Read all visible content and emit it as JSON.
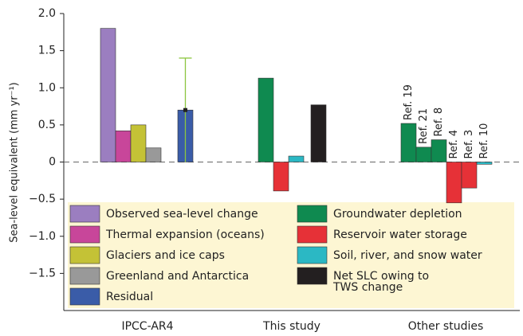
{
  "chart_data": {
    "type": "grouped-bar",
    "y_label": "Sea-level equivalent (mm yr⁻¹)",
    "ylim": [
      -2,
      2
    ],
    "yticks": [
      {
        "value": 2,
        "label": "2.0"
      },
      {
        "value": 1.5,
        "label": "1.5"
      },
      {
        "value": 1,
        "label": "1.0"
      },
      {
        "value": 0.5,
        "label": "0.5"
      },
      0,
      {
        "value": -0.5,
        "label": "−0.5"
      },
      {
        "value": -1,
        "label": "−1.0"
      },
      {
        "value": -1.5,
        "label": "−1.5"
      }
    ],
    "zero_line": true,
    "groups": [
      {
        "label": "IPCC-AR4",
        "bars": [
          {
            "value": 1.8,
            "color": "#9b7ec0"
          },
          {
            "value": 0.42,
            "color": "#c8469a"
          },
          {
            "value": 0.5,
            "color": "#c4c236"
          },
          {
            "value": 0.19,
            "color": "#999999"
          },
          {
            "value": 0.7,
            "color": "#3a5ca8",
            "error": 0.7,
            "error_color": "#8cc63f"
          }
        ]
      },
      {
        "label": "This study",
        "bars": [
          {
            "value": 1.13,
            "color": "#0f8a50"
          },
          {
            "value": -0.39,
            "color": "#e63137"
          },
          {
            "value": 0.08,
            "color": "#2bb8c4"
          },
          {
            "value": 0.77,
            "color": "#231f20"
          }
        ]
      },
      {
        "label": "Other studies",
        "bars": [
          {
            "value": 0.52,
            "color": "#0f8a50",
            "label": "Ref. 19"
          },
          {
            "value": 0.2,
            "color": "#0f8a50",
            "label": "Ref. 21"
          },
          {
            "value": 0.3,
            "color": "#0f8a50",
            "label": "Ref. 8"
          },
          {
            "value": -0.55,
            "color": "#e63137",
            "label": "Ref. 4"
          },
          {
            "value": -0.35,
            "color": "#e63137",
            "label": "Ref. 3"
          },
          {
            "value": -0.03,
            "color": "#2bb8c4",
            "label": "Ref. 10"
          }
        ]
      }
    ],
    "legend": [
      {
        "name": "Observed sea-level change",
        "color": "#9b7ec0"
      },
      {
        "name": "Thermal expansion (oceans)",
        "color": "#c8469a"
      },
      {
        "name": "Glaciers and ice caps",
        "color": "#c4c236"
      },
      {
        "name": "Greenland and Antarctica",
        "color": "#999999"
      },
      {
        "name": "Residual",
        "color": "#3a5ca8"
      },
      {
        "name": "Groundwater depletion",
        "color": "#0f8a50"
      },
      {
        "name": "Reservoir water storage",
        "color": "#e63137"
      },
      {
        "name": "Soil, river, and snow water",
        "color": "#2bb8c4"
      },
      {
        "name": "Net SLC owing to TWS change",
        "color": "#231f20"
      }
    ]
  }
}
